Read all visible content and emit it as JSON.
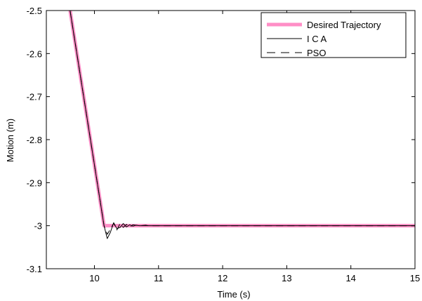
{
  "chart_data": {
    "type": "line",
    "title": "",
    "xlabel": "Time (s)",
    "ylabel": "Motion (m)",
    "xlim": [
      9.25,
      15
    ],
    "ylim": [
      -3.1,
      -2.5
    ],
    "xticks": [
      "10",
      "11",
      "12",
      "13",
      "14",
      "15"
    ],
    "yticks": [
      "-2.5",
      "-2.6",
      "-2.7",
      "-2.8",
      "-2.9",
      "-3",
      "-3.1"
    ],
    "xtick_values": [
      10,
      11,
      12,
      13,
      14,
      15
    ],
    "ytick_values": [
      -2.5,
      -2.6,
      -2.7,
      -2.8,
      -2.9,
      -3.0,
      -3.1
    ],
    "grid": false,
    "legend_position": "top-right",
    "series": [
      {
        "name": "Desired Trajectory",
        "color": "#ff8ec6",
        "style": "solid-thick",
        "x": [
          9.62,
          10.15,
          15.0
        ],
        "y": [
          -2.5,
          -3.0,
          -3.0
        ]
      },
      {
        "name": "I C A",
        "color": "#000000",
        "style": "solid",
        "x": [
          9.62,
          10.15,
          10.2,
          10.25,
          10.3,
          10.35,
          10.4,
          10.45,
          10.5,
          10.55,
          10.6,
          10.65,
          10.7,
          10.8,
          15.0
        ],
        "y": [
          -2.5,
          -3.0,
          -3.03,
          -3.015,
          -2.993,
          -3.007,
          -3.004,
          -2.995,
          -3.003,
          -2.998,
          -3.001,
          -2.999,
          -3.0,
          -3.0,
          -3.0
        ]
      },
      {
        "name": "PSO",
        "color": "#000000",
        "style": "dashed",
        "x": [
          9.62,
          10.15,
          10.2,
          10.25,
          10.3,
          10.35,
          10.4,
          10.45,
          10.5,
          10.55,
          10.6,
          10.7,
          10.8,
          10.85,
          15.0
        ],
        "y": [
          -2.5,
          -3.0,
          -3.02,
          -3.008,
          -2.994,
          -3.01,
          -2.995,
          -3.004,
          -2.997,
          -3.003,
          -2.998,
          -3.0,
          -2.999,
          -3.0,
          -3.0
        ]
      }
    ]
  }
}
